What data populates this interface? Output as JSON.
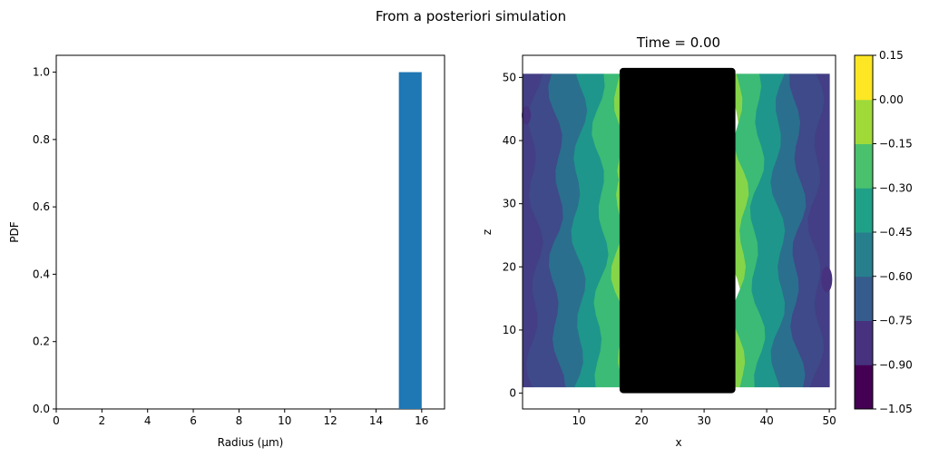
{
  "figure": {
    "suptitle": "From a posteriori simulation"
  },
  "chart_data": [
    {
      "type": "bar",
      "title": "",
      "xlabel": "Radius (μm)",
      "ylabel": "PDF",
      "xlim": [
        0,
        17
      ],
      "ylim": [
        0,
        1.05
      ],
      "xticks": [
        0,
        2,
        4,
        6,
        8,
        10,
        12,
        14,
        16
      ],
      "yticks": [
        0.0,
        0.2,
        0.4,
        0.6,
        0.8,
        1.0
      ],
      "ytick_labels": [
        "0.0",
        "0.2",
        "0.4",
        "0.6",
        "0.8",
        "1.0"
      ],
      "bars": [
        {
          "x0": 15,
          "x1": 16,
          "value": 1.0
        }
      ],
      "color": "#1f77b4",
      "grid": false
    },
    {
      "type": "heatmap",
      "subtype": "filled-contour",
      "title": "Time = 0.00",
      "xlabel": "x",
      "ylabel": "z",
      "xlim": [
        1,
        51
      ],
      "ylim": [
        -2.5,
        53.5
      ],
      "xticks": [
        10,
        20,
        30,
        40,
        50
      ],
      "yticks": [
        0,
        10,
        20,
        30,
        40,
        50
      ],
      "field_extent": {
        "x": [
          1,
          50
        ],
        "z": [
          1,
          50.5
        ]
      },
      "contour_levels": [
        -1.05,
        -0.9,
        -0.75,
        -0.6,
        -0.45,
        -0.3,
        -0.15,
        0.0,
        0.15
      ],
      "contour_bands": [
        {
          "x0": 1,
          "x1": 3,
          "level": -0.9,
          "color": "#433e85"
        },
        {
          "x0": 3,
          "x1": 6.5,
          "level": -0.75,
          "color": "#3e4a89"
        },
        {
          "x0": 6.5,
          "x1": 10,
          "level": -0.6,
          "color": "#2b6f8e"
        },
        {
          "x0": 10,
          "x1": 13.5,
          "level": -0.45,
          "color": "#1f968b"
        },
        {
          "x0": 13.5,
          "x1": 16.5,
          "level": -0.3,
          "color": "#3bbb75"
        },
        {
          "x0": 16.5,
          "x1": 17.5,
          "level": -0.15,
          "color": "#86d549"
        },
        {
          "x0": 34.5,
          "x1": 36,
          "level": -0.15,
          "color": "#86d549"
        },
        {
          "x0": 36,
          "x1": 38.5,
          "level": -0.3,
          "color": "#3bbb75"
        },
        {
          "x0": 38.5,
          "x1": 42,
          "level": -0.45,
          "color": "#1f968b"
        },
        {
          "x0": 42,
          "x1": 45,
          "level": -0.6,
          "color": "#2b6f8e"
        },
        {
          "x0": 45,
          "x1": 48,
          "level": -0.75,
          "color": "#3e4a89"
        },
        {
          "x0": 48,
          "x1": 50,
          "level": -0.9,
          "color": "#433e85"
        }
      ],
      "particles": {
        "x": [
          16.5,
          35
        ],
        "z": [
          0,
          51.5
        ],
        "color": "#000000"
      }
    },
    {
      "type": "colorbar",
      "levels": [
        -1.05,
        -0.9,
        -0.75,
        -0.6,
        -0.45,
        -0.3,
        -0.15,
        0.0,
        0.15
      ],
      "tick_labels": [
        "−1.05",
        "−0.90",
        "−0.75",
        "−0.60",
        "−0.45",
        "−0.30",
        "−0.15",
        "0.00",
        "0.15"
      ],
      "colors": [
        "#440154",
        "#46327e",
        "#365c8d",
        "#277f8e",
        "#1fa187",
        "#4ac16d",
        "#a0da39",
        "#fde725"
      ]
    }
  ]
}
